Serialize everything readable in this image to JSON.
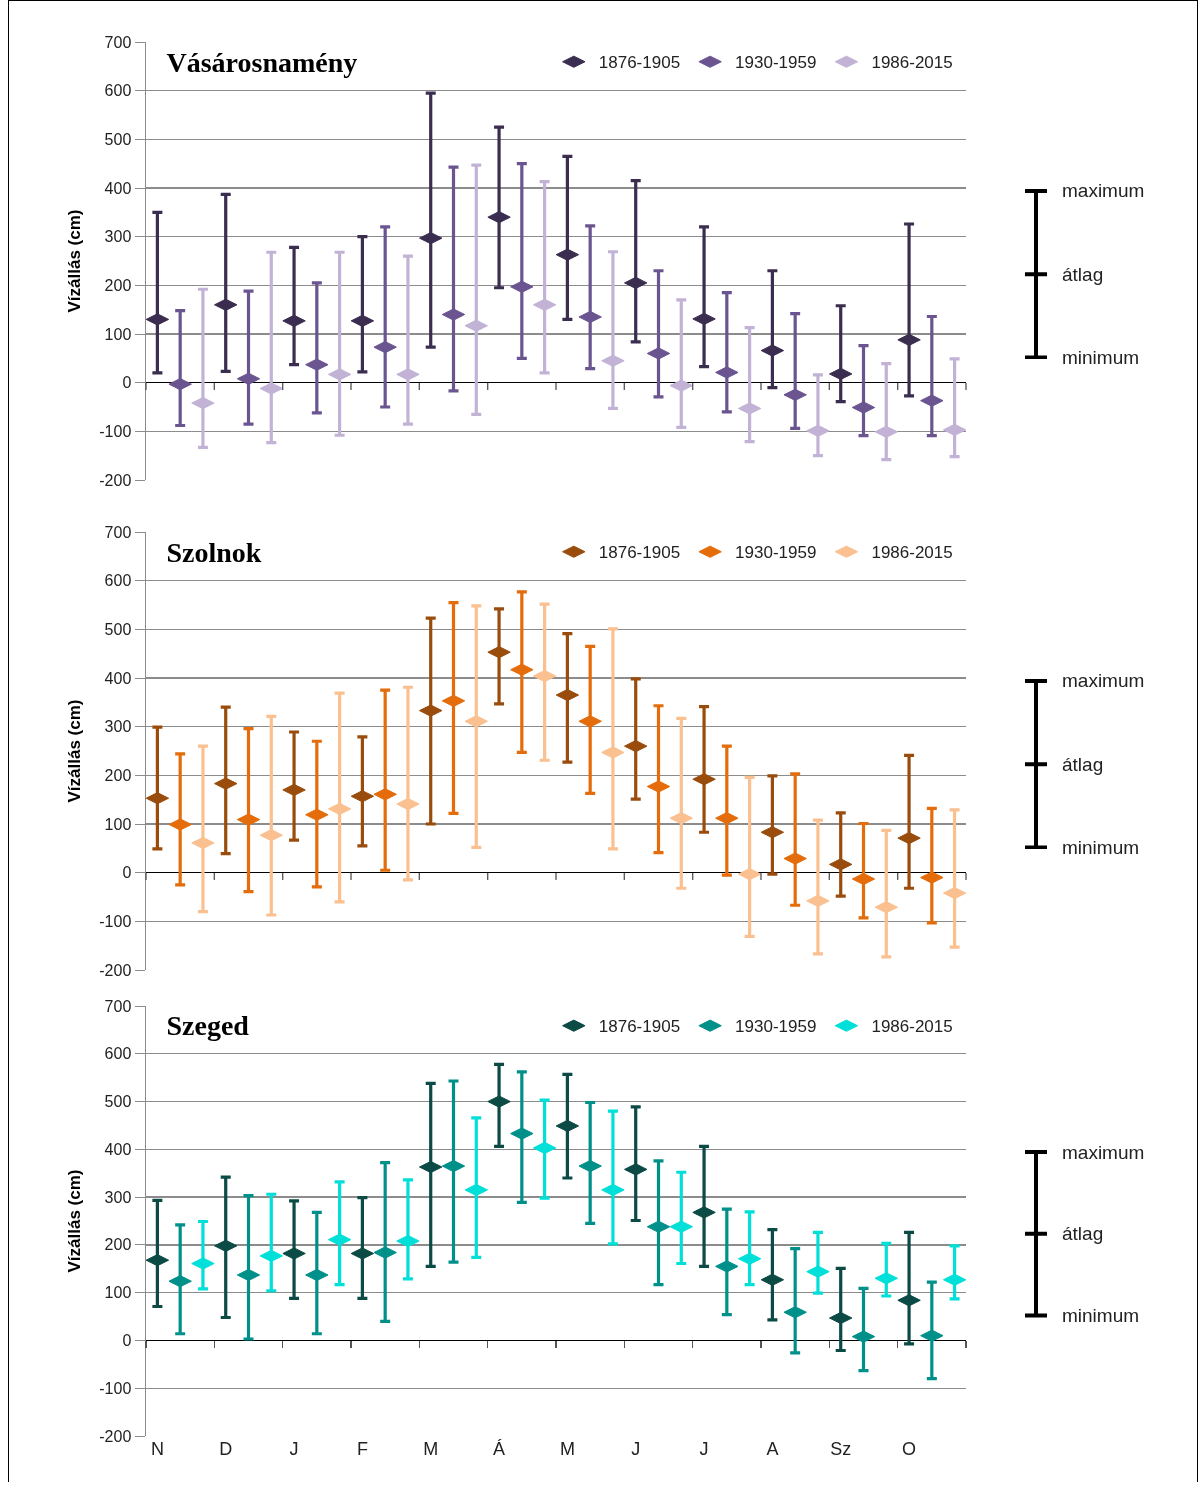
{
  "chart_data": [
    {
      "type": "scatter",
      "title": "Vásárosnamény",
      "ylabel": "Vízállás (cm)",
      "categories": [
        null,
        null,
        null,
        null,
        null,
        null,
        null,
        null,
        null,
        null,
        null,
        null,
        null,
        null,
        null,
        null,
        null,
        null,
        null,
        null,
        null,
        null,
        null,
        null,
        null,
        null,
        null,
        null,
        null,
        null,
        null,
        null,
        null,
        null,
        null,
        null
      ],
      "ylim": [
        -200,
        700
      ],
      "yticks": [
        -200,
        -100,
        0,
        100,
        200,
        300,
        400,
        500,
        600,
        700
      ],
      "grid": "y",
      "legend": "top right",
      "tick_labels": "y",
      "annotations": [
        "maximum",
        "átlag",
        "minimum"
      ],
      "series": [
        {
          "name": "1876-1905",
          "color": "#3b2d4f",
          "values": [
            130,
            null,
            null,
            160,
            null,
            null,
            127,
            null,
            null,
            127,
            null,
            null,
            297,
            null,
            null,
            340,
            null,
            null,
            263,
            null,
            null,
            205,
            null,
            null,
            131,
            null,
            null,
            66,
            null,
            null,
            18,
            null,
            null,
            88,
            null,
            null
          ],
          "errors": [
            [
              20,
              350
            ],
            null,
            null,
            [
              23,
              387
            ],
            null,
            null,
            [
              37,
              278
            ],
            null,
            null,
            [
              22,
              300
            ],
            null,
            null,
            [
              73,
              595
            ],
            null,
            null,
            [
              195,
              525
            ],
            null,
            null,
            [
              130,
              465
            ],
            null,
            null,
            [
              84,
              415
            ],
            null,
            null,
            [
              33,
              320
            ],
            null,
            null,
            [
              -10,
              230
            ],
            null,
            null,
            [
              -39,
              158
            ],
            null,
            null,
            [
              -27,
              326
            ],
            null,
            null
          ]
        },
        {
          "name": "1930-1959",
          "color": "#6a5590",
          "values": [
            null,
            -3,
            null,
            null,
            8,
            null,
            null,
            37,
            null,
            null,
            73,
            null,
            null,
            140,
            null,
            null,
            197,
            null,
            null,
            135,
            null,
            null,
            60,
            null,
            null,
            21,
            null,
            null,
            -25,
            null,
            null,
            -51,
            null,
            null,
            -37,
            null
          ],
          "errors": [
            null,
            [
              -88,
              148
            ],
            null,
            null,
            [
              -85,
              188
            ],
            null,
            null,
            [
              -62,
              205
            ],
            null,
            null,
            [
              -50,
              320
            ],
            null,
            null,
            [
              -17,
              443
            ],
            null,
            null,
            [
              50,
              450
            ],
            null,
            null,
            [
              29,
              322
            ],
            null,
            null,
            [
              -29,
              230
            ],
            null,
            null,
            [
              -60,
              185
            ],
            null,
            null,
            [
              -94,
              142
            ],
            null,
            null,
            [
              -109,
              76
            ],
            null,
            null,
            [
              -109,
              136
            ],
            null
          ]
        },
        {
          "name": "1986-2015",
          "color": "#c2b3d6",
          "values": [
            null,
            null,
            -42,
            null,
            null,
            -12,
            null,
            null,
            17,
            null,
            null,
            17,
            null,
            null,
            117,
            null,
            null,
            160,
            null,
            null,
            45,
            null,
            null,
            -6,
            null,
            null,
            -53,
            null,
            null,
            -99,
            null,
            null,
            -101,
            null,
            null,
            -97
          ],
          "errors": [
            null,
            null,
            [
              -133,
              192
            ],
            null,
            null,
            [
              -123,
              268
            ],
            null,
            null,
            [
              -108,
              268
            ],
            null,
            null,
            [
              -85,
              260
            ],
            null,
            null,
            [
              -65,
              447
            ],
            null,
            null,
            [
              20,
              413
            ],
            null,
            null,
            [
              -53,
              269
            ],
            null,
            null,
            [
              -92,
              170
            ],
            null,
            null,
            [
              -121,
              113
            ],
            null,
            null,
            [
              -150,
              16
            ],
            null,
            null,
            [
              -158,
              39
            ],
            null,
            null,
            [
              -152,
              49
            ]
          ]
        }
      ]
    },
    {
      "type": "scatter",
      "title": "Szolnok",
      "ylabel": "Vízállás (cm)",
      "categories": [
        null,
        null,
        null,
        null,
        null,
        null,
        null,
        null,
        null,
        null,
        null,
        null,
        null,
        null,
        null,
        null,
        null,
        null,
        null,
        null,
        null,
        null,
        null,
        null,
        null,
        null,
        null,
        null,
        null,
        null,
        null,
        null,
        null,
        null,
        null,
        null
      ],
      "ylim": [
        -200,
        700
      ],
      "yticks": [
        -200,
        -100,
        0,
        100,
        200,
        300,
        400,
        500,
        600,
        700
      ],
      "grid": "y",
      "legend": "top right",
      "tick_labels": "y",
      "annotations": [
        "maximum",
        "átlag",
        "minimum"
      ],
      "series": [
        {
          "name": "1876-1905",
          "color": "#994c0b",
          "values": [
            153,
            null,
            null,
            183,
            null,
            null,
            170,
            null,
            null,
            157,
            null,
            null,
            333,
            null,
            null,
            453,
            null,
            null,
            365,
            null,
            null,
            260,
            null,
            null,
            192,
            null,
            null,
            83,
            null,
            null,
            17,
            null,
            null,
            71,
            null,
            null
          ],
          "errors": [
            [
              49,
              299
            ],
            null,
            null,
            [
              39,
              340
            ],
            null,
            null,
            [
              67,
              289
            ],
            null,
            null,
            [
              55,
              279
            ],
            null,
            null,
            [
              100,
              523
            ],
            null,
            null,
            [
              347,
              542
            ],
            null,
            null,
            [
              227,
              491
            ],
            null,
            null,
            [
              151,
              398
            ],
            null,
            null,
            [
              83,
              341
            ],
            null,
            null,
            [
              -3,
              199
            ],
            null,
            null,
            [
              -48,
              123
            ],
            null,
            null,
            [
              -32,
              241
            ],
            null,
            null
          ]
        },
        {
          "name": "1930-1959",
          "color": "#e46c0a",
          "values": [
            null,
            99,
            null,
            null,
            109,
            null,
            null,
            119,
            null,
            null,
            161,
            null,
            null,
            353,
            null,
            null,
            417,
            null,
            null,
            311,
            null,
            null,
            177,
            null,
            null,
            112,
            null,
            null,
            29,
            null,
            null,
            -13,
            null,
            null,
            -10,
            null
          ],
          "errors": [
            null,
            [
              -25,
              244
            ],
            null,
            null,
            [
              -39,
              296
            ],
            null,
            null,
            [
              -29,
              270
            ],
            null,
            null,
            [
              5,
              375
            ],
            null,
            null,
            [
              122,
              555
            ],
            null,
            null,
            [
              247,
              577
            ],
            null,
            null,
            [
              163,
              465
            ],
            null,
            null,
            [
              41,
              343
            ],
            null,
            null,
            [
              -5,
              260
            ],
            null,
            null,
            [
              -67,
              203
            ],
            null,
            null,
            [
              -93,
              101
            ],
            null,
            null,
            [
              -103,
              132
            ],
            null
          ]
        },
        {
          "name": "1986-2015",
          "color": "#fac090",
          "values": [
            null,
            null,
            61,
            null,
            null,
            77,
            null,
            null,
            131,
            null,
            null,
            141,
            null,
            null,
            311,
            null,
            null,
            404,
            null,
            null,
            247,
            null,
            null,
            112,
            null,
            null,
            -3,
            null,
            null,
            -58,
            null,
            null,
            -71,
            null,
            null,
            -42
          ],
          "errors": [
            null,
            null,
            [
              -80,
              260
            ],
            null,
            null,
            [
              -87,
              321
            ],
            null,
            null,
            [
              -60,
              369
            ],
            null,
            null,
            [
              -15,
              381
            ],
            null,
            null,
            [
              52,
              548
            ],
            null,
            null,
            [
              231,
              552
            ],
            null,
            null,
            [
              49,
              501
            ],
            null,
            null,
            [
              -32,
              317
            ],
            null,
            null,
            [
              -131,
              196
            ],
            null,
            null,
            [
              -167,
              108
            ],
            null,
            null,
            [
              -173,
              87
            ],
            null,
            null,
            [
              -153,
              129
            ]
          ]
        }
      ]
    },
    {
      "type": "scatter",
      "title": "Szeged",
      "ylabel": "Vízállás (cm)",
      "categories": [
        "N",
        null,
        null,
        "D",
        null,
        null,
        "J",
        null,
        null,
        "F",
        null,
        null,
        "M",
        null,
        null,
        "Á",
        null,
        null,
        "M",
        null,
        null,
        "J",
        null,
        null,
        "J",
        null,
        null,
        "A",
        null,
        null,
        "Sz",
        null,
        null,
        "O",
        null,
        null
      ],
      "ylim": [
        -200,
        700
      ],
      "yticks": [
        -200,
        -100,
        0,
        100,
        200,
        300,
        400,
        500,
        600,
        700
      ],
      "grid": "y",
      "legend": "top right",
      "annotations": [
        "maximum",
        "átlag",
        "minimum"
      ],
      "series": [
        {
          "name": "1876-1905",
          "color": "#0b4a45",
          "values": [
            168,
            null,
            null,
            198,
            null,
            null,
            182,
            null,
            null,
            182,
            null,
            null,
            363,
            null,
            null,
            500,
            null,
            null,
            449,
            null,
            null,
            358,
            null,
            null,
            268,
            null,
            null,
            127,
            null,
            null,
            47,
            null,
            null,
            84,
            null,
            null
          ],
          "errors": [
            [
              71,
              293
            ],
            null,
            null,
            [
              48,
              342
            ],
            null,
            null,
            [
              88,
              292
            ],
            null,
            null,
            [
              88,
              299
            ],
            null,
            null,
            [
              155,
              538
            ],
            null,
            null,
            [
              406,
              578
            ],
            null,
            null,
            [
              340,
              557
            ],
            null,
            null,
            [
              251,
              489
            ],
            null,
            null,
            [
              155,
              406
            ],
            null,
            null,
            [
              43,
              232
            ],
            null,
            null,
            [
              -21,
              151
            ],
            null,
            null,
            [
              -7,
              226
            ],
            null,
            null
          ]
        },
        {
          "name": "1930-1959",
          "color": "#00908a",
          "values": [
            null,
            124,
            null,
            null,
            137,
            null,
            null,
            137,
            null,
            null,
            184,
            null,
            null,
            365,
            null,
            null,
            433,
            null,
            null,
            365,
            null,
            null,
            238,
            null,
            null,
            155,
            null,
            null,
            59,
            null,
            null,
            8,
            null,
            null,
            10,
            null
          ],
          "errors": [
            null,
            [
              14,
              242
            ],
            null,
            null,
            [
              3,
              303
            ],
            null,
            null,
            [
              14,
              268
            ],
            null,
            null,
            [
              40,
              372
            ],
            null,
            null,
            [
              164,
              543
            ],
            null,
            null,
            [
              289,
              562
            ],
            null,
            null,
            [
              245,
              498
            ],
            null,
            null,
            [
              117,
              376
            ],
            null,
            null,
            [
              54,
              275
            ],
            null,
            null,
            [
              -26,
              192
            ],
            null,
            null,
            [
              -63,
              109
            ],
            null,
            null,
            [
              -80,
              122
            ],
            null
          ]
        },
        {
          "name": "1986-2015",
          "color": "#00e0d8",
          "values": [
            null,
            null,
            161,
            null,
            null,
            177,
            null,
            null,
            211,
            null,
            null,
            208,
            null,
            null,
            315,
            null,
            null,
            403,
            null,
            null,
            315,
            null,
            null,
            238,
            null,
            null,
            171,
            null,
            null,
            144,
            null,
            null,
            130,
            null,
            null,
            127
          ],
          "errors": [
            null,
            null,
            [
              108,
              249
            ],
            null,
            null,
            [
              104,
              306
            ],
            null,
            null,
            [
              117,
              332
            ],
            null,
            null,
            [
              129,
              336
            ],
            null,
            null,
            [
              174,
              466
            ],
            null,
            null,
            [
              298,
              503
            ],
            null,
            null,
            [
              202,
              480
            ],
            null,
            null,
            [
              161,
              352
            ],
            null,
            null,
            [
              117,
              269
            ],
            null,
            null,
            [
              99,
              226
            ],
            null,
            null,
            [
              93,
              203
            ],
            null,
            null,
            [
              87,
              198
            ]
          ]
        }
      ]
    }
  ]
}
